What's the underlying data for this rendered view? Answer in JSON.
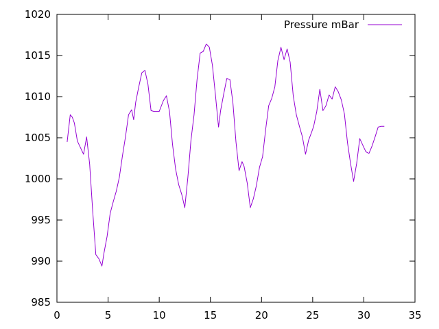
{
  "chart_data": {
    "type": "line",
    "title": "",
    "xlabel": "",
    "ylabel": "",
    "xlim": [
      0,
      35
    ],
    "ylim": [
      985,
      1020
    ],
    "x_ticks": [
      "0",
      "5",
      "10",
      "15",
      "20",
      "25",
      "30",
      "35"
    ],
    "y_ticks": [
      "985",
      "990",
      "995",
      "1000",
      "1005",
      "1010",
      "1015",
      "1020"
    ],
    "grid": false,
    "legend_position": "top-right",
    "series": [
      {
        "name": "Pressure mBar",
        "color": "#9400d3",
        "x": [
          1,
          1.3,
          1.5,
          1.7,
          2,
          2.3,
          2.6,
          2.9,
          3.2,
          3.5,
          3.8,
          4.1,
          4.4,
          4.6,
          4.9,
          5.2,
          5.5,
          5.8,
          6.1,
          6.4,
          6.7,
          7,
          7.3,
          7.5,
          7.7,
          8,
          8.3,
          8.6,
          8.9,
          9.2,
          9.5,
          10,
          10.4,
          10.7,
          11,
          11.3,
          11.6,
          11.9,
          12.2,
          12.5,
          12.8,
          13.1,
          13.4,
          13.7,
          14,
          14.3,
          14.6,
          14.9,
          15.2,
          15.5,
          15.8,
          16,
          16.3,
          16.6,
          16.9,
          17.2,
          17.5,
          17.8,
          18.1,
          18.3,
          18.6,
          18.9,
          19.2,
          19.5,
          19.8,
          20.1,
          20.4,
          20.7,
          21,
          21.3,
          21.6,
          21.9,
          22.2,
          22.5,
          22.8,
          23.1,
          23.4,
          23.7,
          24,
          24.3,
          24.6,
          24.9,
          25.1,
          25.4,
          25.7,
          26,
          26.3,
          26.6,
          26.9,
          27.2,
          27.5,
          27.8,
          28.1,
          28.4,
          28.7,
          29,
          29.3,
          29.6,
          29.9,
          30.2,
          30.5,
          30.8,
          31.1,
          31.4,
          31.7,
          32
        ],
        "values": [
          1004.5,
          1007.8,
          1007.5,
          1006.8,
          1004.6,
          1003.8,
          1003,
          1005.1,
          1001.8,
          996,
          990.8,
          990.3,
          989.4,
          991,
          993,
          995.8,
          997.2,
          998.5,
          1000.2,
          1002.8,
          1005.1,
          1007.8,
          1008.4,
          1007.2,
          1009.3,
          1011.2,
          1012.9,
          1013.2,
          1011.5,
          1008.3,
          1008.2,
          1008.2,
          1009.5,
          1010.1,
          1008.2,
          1004.2,
          1001.2,
          999.3,
          998.1,
          996.5,
          1000.2,
          1004.7,
          1007.8,
          1012.1,
          1015.3,
          1015.5,
          1016.4,
          1016,
          1013.8,
          1010.1,
          1006.3,
          1008.3,
          1010.3,
          1012.2,
          1012.1,
          1009.3,
          1004.5,
          1001,
          1002.1,
          1001.5,
          999.5,
          996.5,
          997.6,
          999.2,
          1001.4,
          1002.7,
          1006,
          1008.9,
          1009.8,
          1011.2,
          1014.4,
          1016,
          1014.5,
          1015.8,
          1014.2,
          1010.1,
          1007.8,
          1006.4,
          1005.1,
          1003,
          1004.7,
          1005.7,
          1006.4,
          1008.2,
          1010.9,
          1008.3,
          1008.9,
          1010.2,
          1009.7,
          1011.2,
          1010.6,
          1009.6,
          1007.9,
          1004.4,
          1001.9,
          999.7,
          1001.9,
          1004.9,
          1004.1,
          1003.3,
          1003.1,
          1004,
          1005.1,
          1006.3,
          1006.4,
          1006.4
        ]
      }
    ]
  }
}
